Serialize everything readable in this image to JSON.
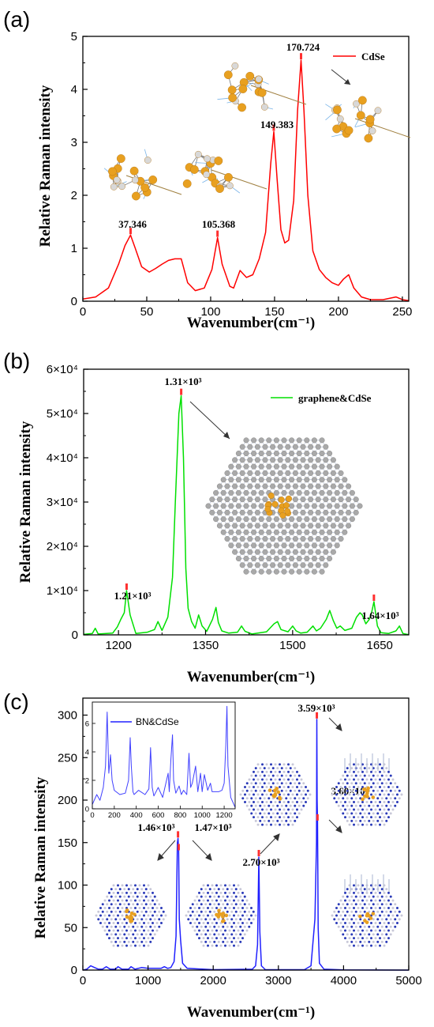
{
  "chart_data": [
    {
      "panel": "(a)",
      "type": "line",
      "xlabel": "Wavenumber(cm⁻¹)",
      "ylabel": "Relative Raman intensity",
      "xlim": [
        0,
        255
      ],
      "ylim": [
        0,
        5
      ],
      "xticks": [
        0,
        50,
        100,
        150,
        200,
        250
      ],
      "yticks": [
        0,
        1,
        2,
        3,
        4,
        5
      ],
      "legend": "top-right",
      "series": [
        {
          "name": "CdSe",
          "color": "#ff0000",
          "x": [
            0,
            10,
            20,
            28,
            33,
            37.3,
            41,
            46,
            52,
            57,
            62,
            67,
            72,
            77,
            82,
            88,
            95,
            101,
            105.4,
            109,
            115,
            118,
            123,
            128,
            133,
            138,
            143,
            147,
            149.4,
            152,
            155,
            158,
            161,
            165,
            168,
            170.7,
            173,
            176,
            180,
            185,
            190,
            195,
            200,
            204,
            208,
            212,
            218,
            225,
            235,
            245,
            250,
            255
          ],
          "y": [
            0.04,
            0.08,
            0.25,
            0.7,
            1.05,
            1.25,
            1.0,
            0.65,
            0.55,
            0.62,
            0.7,
            0.77,
            0.8,
            0.8,
            0.35,
            0.2,
            0.25,
            0.6,
            1.2,
            0.7,
            0.28,
            0.25,
            0.58,
            0.45,
            0.5,
            0.8,
            1.3,
            2.6,
            3.2,
            2.3,
            1.35,
            1.1,
            1.15,
            1.9,
            3.6,
            4.55,
            3.6,
            2.0,
            0.95,
            0.6,
            0.45,
            0.35,
            0.3,
            0.42,
            0.5,
            0.25,
            0.08,
            0.03,
            0.03,
            0.08,
            0.03,
            0.01
          ]
        }
      ],
      "annotations": [
        "37.346",
        "105.368",
        "149.383",
        "170.724"
      ],
      "peaks": [
        37.346,
        105.368,
        149.383,
        170.724
      ]
    },
    {
      "panel": "(b)",
      "type": "line",
      "xlabel": "Wavenumber(cm⁻¹)",
      "ylabel": "Relative Raman intensity",
      "xlim": [
        1140,
        1700
      ],
      "ylim": [
        0,
        60000
      ],
      "xticks": [
        1200,
        1350,
        1500,
        1650
      ],
      "yticks": [
        "0",
        "1×10⁴",
        "2×10⁴",
        "3×10⁴",
        "4×10⁴",
        "5×10⁴",
        "6×10⁴"
      ],
      "ytick_values": [
        0,
        10000,
        20000,
        30000,
        40000,
        50000,
        60000
      ],
      "legend": "top-right",
      "series": [
        {
          "name": "graphene&CdSe",
          "color": "#00e000",
          "x": [
            1140,
            1155,
            1160,
            1165,
            1190,
            1198,
            1204,
            1210,
            1214,
            1220,
            1230,
            1250,
            1262,
            1268,
            1275,
            1285,
            1293,
            1298,
            1304,
            1308,
            1312,
            1316,
            1320,
            1326,
            1332,
            1338,
            1344,
            1352,
            1362,
            1368,
            1372,
            1378,
            1390,
            1405,
            1412,
            1418,
            1430,
            1455,
            1468,
            1474,
            1480,
            1492,
            1500,
            1506,
            1514,
            1525,
            1535,
            1541,
            1548,
            1558,
            1564,
            1570,
            1576,
            1582,
            1590,
            1602,
            1610,
            1616,
            1620,
            1626,
            1632,
            1636,
            1640,
            1646,
            1652,
            1665,
            1678,
            1684,
            1690,
            1700
          ],
          "y": [
            100,
            300,
            1500,
            200,
            400,
            1800,
            3500,
            5000,
            10000,
            4500,
            300,
            600,
            1200,
            3000,
            1000,
            4000,
            13000,
            30000,
            50000,
            54000,
            40000,
            15000,
            6000,
            3000,
            1500,
            4500,
            2000,
            800,
            3500,
            6200,
            2800,
            900,
            400,
            600,
            2000,
            800,
            200,
            700,
            2500,
            3000,
            1200,
            700,
            2000,
            900,
            400,
            600,
            2000,
            900,
            1500,
            3500,
            5500,
            3200,
            1500,
            2000,
            1000,
            1500,
            4000,
            5000,
            4500,
            2500,
            3500,
            5000,
            7500,
            2000,
            500,
            300,
            900,
            2000,
            300,
            50
          ]
        }
      ],
      "annotations": [
        "1.21×10³",
        "1.31×10³",
        "1.64×10³"
      ],
      "peaks": [
        1214,
        1308,
        1640
      ]
    },
    {
      "panel": "(c)",
      "type": "line",
      "xlabel": "Wavenumber(cm⁻¹)",
      "ylabel": "Relative Raman intensity",
      "xlim": [
        0,
        5000
      ],
      "ylim": [
        0,
        320
      ],
      "xticks": [
        0,
        1000,
        2000,
        3000,
        4000,
        5000
      ],
      "yticks": [
        0,
        50,
        100,
        150,
        200,
        250,
        300
      ],
      "series": [
        {
          "name": "BN&CdSe",
          "color": "#2020ff",
          "x": [
            0,
            60,
            120,
            180,
            240,
            300,
            360,
            420,
            500,
            540,
            600,
            700,
            740,
            800,
            900,
            1000,
            1100,
            1200,
            1250,
            1300,
            1350,
            1400,
            1430,
            1450,
            1460,
            1470,
            1480,
            1500,
            1530,
            1600,
            2000,
            2600,
            2650,
            2680,
            2700,
            2715,
            2740,
            2800,
            3400,
            3500,
            3560,
            3585,
            3590,
            3595,
            3600,
            3610,
            3630,
            3700,
            4000,
            5000
          ],
          "y": [
            0,
            1,
            5,
            3,
            1,
            1,
            4,
            1,
            1,
            4,
            1,
            1,
            4,
            1,
            3,
            2,
            2,
            2,
            4,
            2,
            3,
            10,
            40,
            150,
            155,
            140,
            60,
            35,
            8,
            2,
            0.5,
            1,
            5,
            30,
            133,
            45,
            5,
            0.5,
            0.5,
            5,
            60,
            150,
            295,
            200,
            175,
            50,
            8,
            1,
            0.2,
            0
          ]
        }
      ],
      "annotations": [
        "1.46×10³",
        "1.47×10³",
        "2.70×10³",
        "3.59×10³",
        "3.60×10³"
      ],
      "peaks": [
        1460,
        1470,
        2700,
        3590,
        3600
      ],
      "inset": {
        "type": "line",
        "legend": "BN&CdSe",
        "xlim": [
          0,
          1300
        ],
        "ylim": [
          0,
          7.5
        ],
        "xticks": [
          0,
          200,
          400,
          600,
          800,
          1000,
          1200
        ],
        "yticks": [
          0,
          2,
          4,
          6
        ],
        "x": [
          0,
          40,
          70,
          100,
          120,
          135,
          150,
          165,
          180,
          200,
          250,
          300,
          330,
          345,
          355,
          370,
          380,
          420,
          480,
          515,
          530,
          545,
          560,
          600,
          640,
          690,
          700,
          715,
          730,
          740,
          760,
          790,
          810,
          830,
          860,
          880,
          895,
          910,
          940,
          960,
          985,
          1000,
          1020,
          1050,
          1075,
          1090,
          1110,
          1150,
          1180,
          1200,
          1215,
          1225,
          1235,
          1260,
          1300
        ],
        "y": [
          0.3,
          1.0,
          0.6,
          1.5,
          3.0,
          6.8,
          2.5,
          3.8,
          2.0,
          1.3,
          1.0,
          1.1,
          2.0,
          5.0,
          3.0,
          1.2,
          1.0,
          1.3,
          1.0,
          1.4,
          4.3,
          1.5,
          0.9,
          1.5,
          0.8,
          2.5,
          1.2,
          3.5,
          5.2,
          2.0,
          1.1,
          1.6,
          1.0,
          1.3,
          1.0,
          3.9,
          1.5,
          1.8,
          3.0,
          1.2,
          2.5,
          1.2,
          2.4,
          1.3,
          1.8,
          1.2,
          1.2,
          1.2,
          1.3,
          1.8,
          4.5,
          7.2,
          3.0,
          0.8,
          0.1
        ]
      }
    }
  ],
  "panels": {
    "a": {
      "letter": "(a)",
      "ylabel": "Relative Raman intensity",
      "xlabel": "Wavenumber(cm⁻¹)",
      "legend": "CdSe",
      "peak_labels": [
        "37.346",
        "105.368",
        "149.383",
        "170.724"
      ]
    },
    "b": {
      "letter": "(b)",
      "ylabel": "Relative Raman intensity",
      "xlabel": "Wavenumber(cm⁻¹)",
      "legend": "graphene&CdSe",
      "peak_labels": [
        "1.21×10³",
        "1.31×10³",
        "1.64×10³"
      ]
    },
    "c": {
      "letter": "(c)",
      "ylabel": "Relative Raman intensity",
      "xlabel": "Wavenumber(cm⁻¹)",
      "inset_legend": "BN&CdSe",
      "peak_labels": [
        "1.46×10³",
        "1.47×10³",
        "2.70×10³",
        "3.59×10³",
        "3.60×10³"
      ]
    }
  }
}
